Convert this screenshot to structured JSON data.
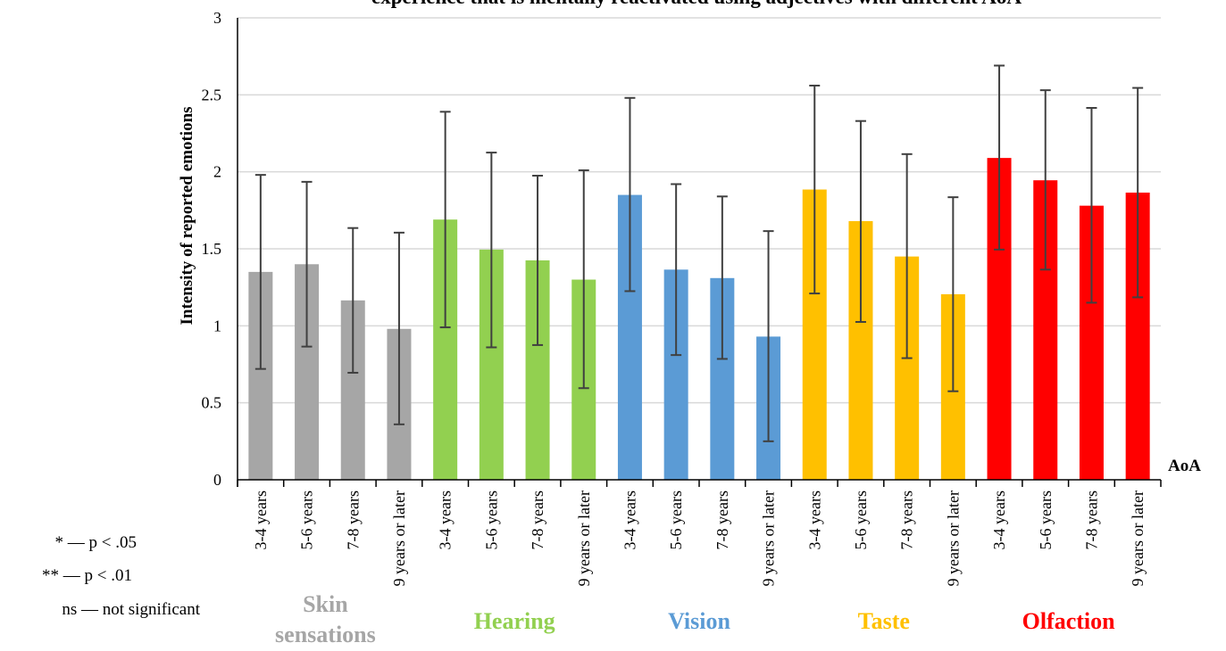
{
  "chart_data": {
    "type": "bar",
    "title": "experience that is mentally reactivated using adjectives with different AoA",
    "ylabel": "Intensity of reported emotions",
    "xlabel": "AoA",
    "ylim": [
      0,
      3
    ],
    "yticks": [
      "0",
      "0.5",
      "1",
      "1.5",
      "2",
      "2.5",
      "3"
    ],
    "grid": true,
    "categories": [
      "3-4 years",
      "5-6 years",
      "7-8 years",
      "9 years or later",
      "3-4 years",
      "5-6 years",
      "7-8 years",
      "9 years or later",
      "3-4 years",
      "5-6 years",
      "7-8 years",
      "9 years or later",
      "3-4 years",
      "5-6 years",
      "7-8 years",
      "9 years or later",
      "3-4 years",
      "5-6 years",
      "7-8 years",
      "9 years or later"
    ],
    "groups": [
      {
        "name": "Skin sensations",
        "name_lines": [
          "Skin",
          "sensations"
        ],
        "color": "#a6a6a6",
        "values": [
          1.35,
          1.4,
          1.165,
          0.98
        ],
        "err_high": [
          1.98,
          1.935,
          1.635,
          1.605
        ],
        "err_low": [
          0.72,
          0.865,
          0.695,
          0.36
        ]
      },
      {
        "name": "Hearing",
        "name_lines": [
          "Hearing"
        ],
        "color": "#92d050",
        "values": [
          1.69,
          1.495,
          1.425,
          1.3
        ],
        "err_high": [
          2.39,
          2.125,
          1.975,
          2.01
        ],
        "err_low": [
          0.99,
          0.86,
          0.875,
          0.595
        ]
      },
      {
        "name": "Vision",
        "name_lines": [
          "Vision"
        ],
        "color": "#5b9bd5",
        "values": [
          1.85,
          1.365,
          1.31,
          0.93
        ],
        "err_high": [
          2.48,
          1.92,
          1.84,
          1.615
        ],
        "err_low": [
          1.225,
          0.81,
          0.785,
          0.25
        ]
      },
      {
        "name": "Taste",
        "name_lines": [
          "Taste"
        ],
        "color": "#ffc000",
        "values": [
          1.885,
          1.68,
          1.45,
          1.205
        ],
        "err_high": [
          2.56,
          2.33,
          2.115,
          1.835
        ],
        "err_low": [
          1.21,
          1.025,
          0.79,
          0.575
        ]
      },
      {
        "name": "Olfaction",
        "name_lines": [
          "Olfaction"
        ],
        "color": "#ff0000",
        "values": [
          2.09,
          1.945,
          1.78,
          1.865
        ],
        "err_high": [
          2.69,
          2.53,
          2.415,
          2.545
        ],
        "err_low": [
          1.495,
          1.365,
          1.15,
          1.185
        ]
      }
    ]
  },
  "legend": {
    "items": [
      "* — p < .05",
      "** — p < .01",
      "ns — not significant"
    ]
  },
  "colors": {
    "grid": "#d9d9d9",
    "axis": "#000000",
    "errorbar": "#404040"
  }
}
